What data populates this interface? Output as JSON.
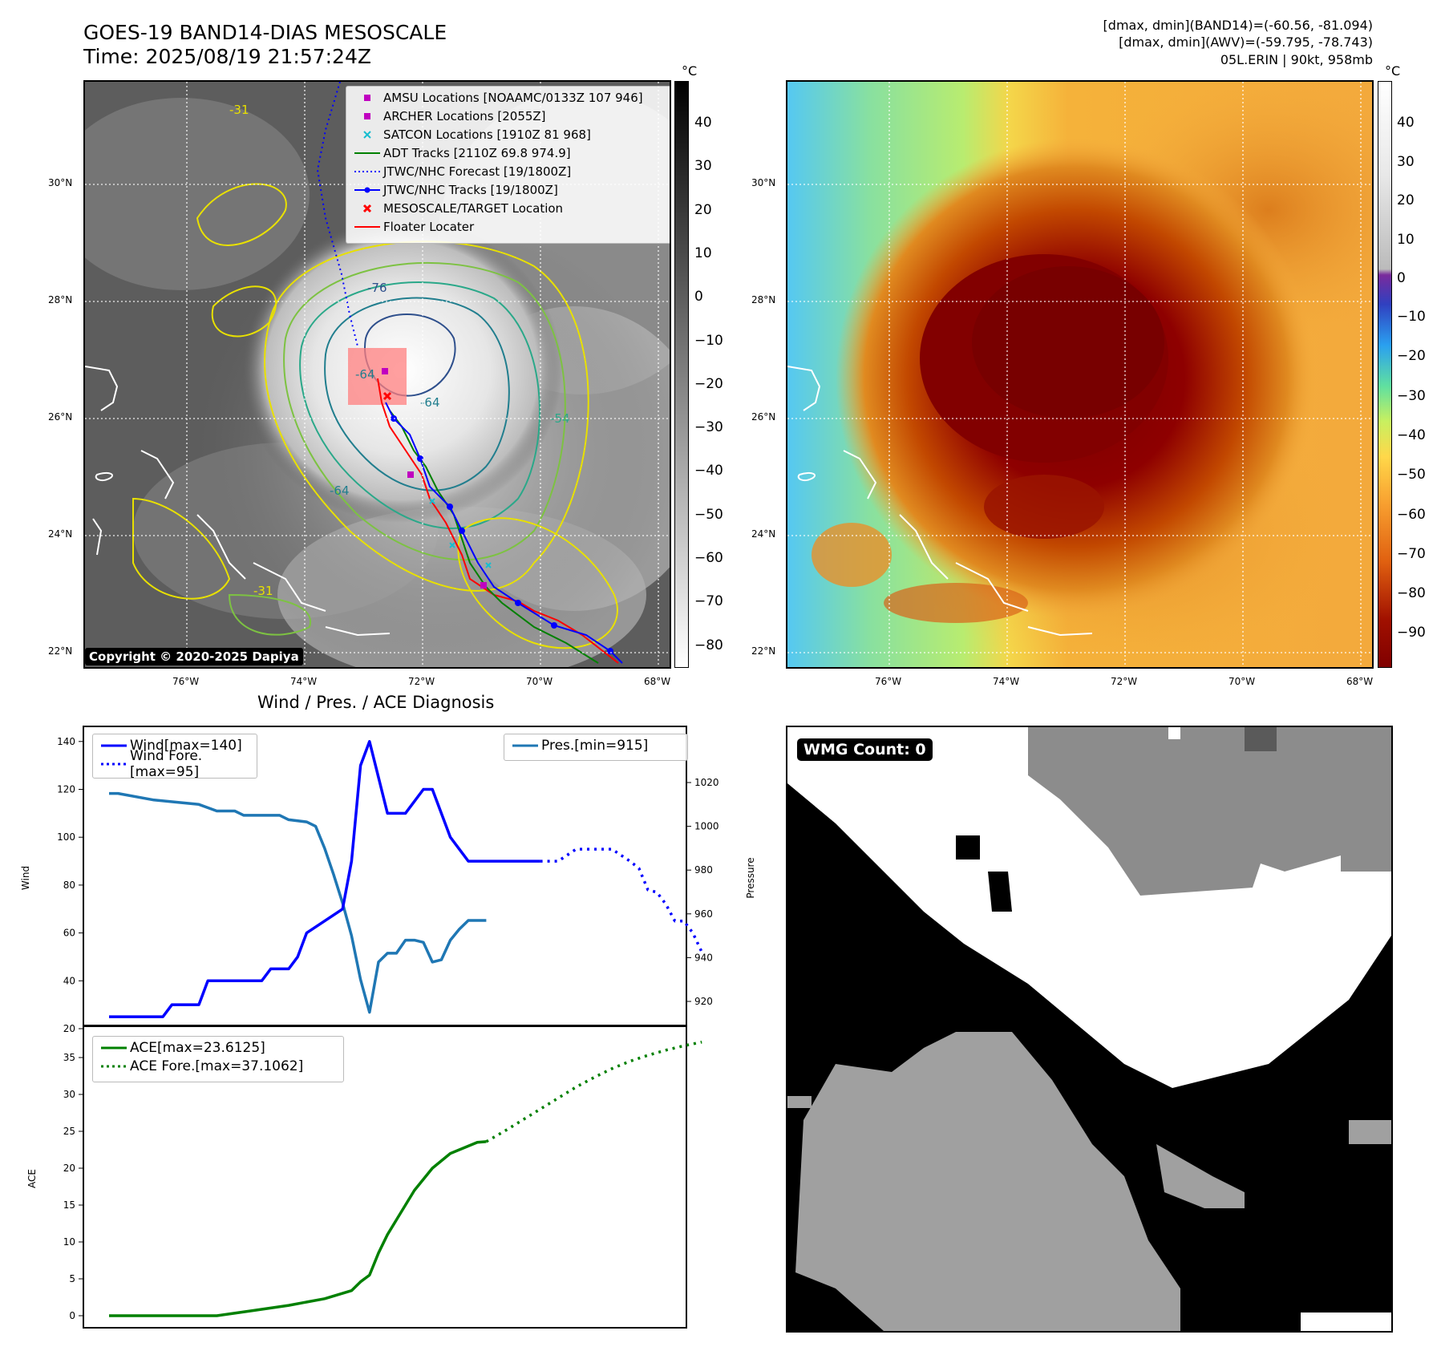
{
  "header": {
    "title_line1": "GOES-19 BAND14-DIAS MESOSCALE",
    "title_line2": "Time: 2025/08/19 21:57:24Z",
    "stat_line1": "[dmax, dmin](BAND14)=(-60.56, -81.094)",
    "stat_line2": "[dmax, dmin](AWV)=(-59.795, -78.743)",
    "stat_line3": "05L.ERIN | 90kt, 958mb"
  },
  "map": {
    "lat_ticks": [
      "30°N",
      "28°N",
      "26°N",
      "24°N",
      "22°N"
    ],
    "lon_ticks": [
      "76°W",
      "74°W",
      "72°W",
      "70°W",
      "68°W"
    ],
    "cbar_unit": "°C",
    "left_cbar_ticks": [
      "40",
      "30",
      "20",
      "10",
      "0",
      "−10",
      "−20",
      "−30",
      "−40",
      "−50",
      "−60",
      "−70",
      "−80"
    ],
    "right_cbar_ticks": [
      "40",
      "30",
      "20",
      "10",
      "0",
      "−10",
      "−20",
      "−30",
      "−40",
      "−50",
      "−60",
      "−70",
      "−80",
      "−90"
    ],
    "copyright": "Copyright © 2020-2025 Dapiya",
    "contour_labels": [
      "-76",
      "-64",
      "-64",
      "-64",
      "-54",
      "-31",
      "-31"
    ],
    "legend": [
      {
        "label": "AMSU Locations [NOAAMC/0133Z 107 946]",
        "symbol": "square",
        "color": "#c000c0"
      },
      {
        "label": "ARCHER Locations [2055Z]",
        "symbol": "square",
        "color": "#c000c0"
      },
      {
        "label": "SATCON Locations [1910Z 81 968]",
        "symbol": "x",
        "color": "#17becf"
      },
      {
        "label": "ADT Tracks [2110Z 69.8 974.9]",
        "symbol": "line",
        "color": "#008000"
      },
      {
        "label": "JTWC/NHC Forecast [19/1800Z]",
        "symbol": "dotted",
        "color": "#0000ff"
      },
      {
        "label": "JTWC/NHC Tracks [19/1800Z]",
        "symbol": "line-dot",
        "color": "#0000ff"
      },
      {
        "label": "MESOSCALE/TARGET Location",
        "symbol": "x",
        "color": "#ff0000"
      },
      {
        "label": "Floater Locater",
        "symbol": "line",
        "color": "#ff0000"
      }
    ]
  },
  "diagnosis": {
    "title": "Wind / Pres. / ACE Diagnosis",
    "wind_label": "Wind",
    "pressure_label": "Pressure",
    "ace_label": "ACE",
    "legend_wind": "Wind[max=140]",
    "legend_wind_fore": "Wind Fore.[max=95]",
    "legend_pres": "Pres.[min=915]",
    "legend_ace": "ACE[max=23.6125]",
    "legend_ace_fore": "ACE Fore.[max=37.1062]",
    "wind_ticks": [
      "20",
      "40",
      "60",
      "80",
      "100",
      "120",
      "140"
    ],
    "pres_ticks": [
      "920",
      "940",
      "960",
      "980",
      "1000",
      "1020"
    ],
    "ace_ticks": [
      "0",
      "5",
      "10",
      "15",
      "20",
      "25",
      "30",
      "35"
    ]
  },
  "wmg": {
    "count_label": "WMG Count: 0"
  },
  "colors": {
    "wind": "#0000ff",
    "pressure": "#1f77b4",
    "ace": "#008000",
    "track_red": "#ff0000",
    "adt_green": "#008000"
  },
  "chart_data": [
    {
      "type": "line",
      "name_hint": "wind-pressure",
      "x": [
        0,
        1,
        2,
        3,
        4,
        5,
        6,
        7,
        8,
        9,
        10,
        11,
        12,
        13,
        14,
        15,
        16,
        17,
        18,
        19,
        20,
        21,
        22,
        23,
        24,
        25,
        26,
        27,
        28,
        29,
        30,
        31,
        32,
        33,
        34,
        35,
        36,
        37,
        38,
        39,
        40,
        41,
        42,
        43,
        44,
        45,
        46,
        47,
        48,
        49,
        50,
        51,
        52,
        53,
        54,
        55,
        56,
        57,
        58,
        59,
        60,
        61,
        62,
        63,
        64,
        65,
        66,
        67,
        68,
        69,
        70
      ],
      "series": [
        {
          "name": "Wind[max=140]",
          "axis": "left",
          "style": "solid",
          "x": [
            0,
            6,
            7,
            10,
            11,
            17,
            18,
            19,
            20,
            21,
            22,
            24,
            26,
            27,
            28,
            29,
            30,
            31,
            32,
            33,
            34,
            35,
            36,
            37,
            38,
            40,
            41,
            42,
            44,
            45,
            46,
            48
          ],
          "values": [
            25,
            25,
            30,
            30,
            40,
            40,
            45,
            45,
            45,
            50,
            60,
            65,
            70,
            90,
            130,
            140,
            125,
            110,
            110,
            110,
            115,
            120,
            120,
            110,
            100,
            90,
            90,
            90,
            90,
            90,
            90,
            90
          ]
        },
        {
          "name": "Wind Fore.[max=95]",
          "axis": "left",
          "style": "dotted",
          "x": [
            48,
            50,
            52,
            54,
            56,
            58,
            59,
            60,
            61,
            62,
            63,
            64,
            65,
            66
          ],
          "values": [
            90,
            90,
            95,
            95,
            95,
            90,
            87,
            78,
            77,
            72,
            65,
            65,
            60,
            52
          ]
        },
        {
          "name": "Pres.[min=915]",
          "axis": "right",
          "style": "solid",
          "x": [
            0,
            1,
            5,
            10,
            12,
            14,
            15,
            19,
            20,
            22,
            23,
            24,
            25,
            26,
            27,
            28,
            29,
            30,
            31,
            32,
            33,
            34,
            35,
            36,
            37,
            38,
            39,
            40,
            41,
            42
          ],
          "values": [
            1015,
            1015,
            1012,
            1010,
            1007,
            1007,
            1005,
            1005,
            1003,
            1002,
            1000,
            990,
            978,
            965,
            950,
            930,
            915,
            938,
            942,
            942,
            948,
            948,
            947,
            938,
            939,
            948,
            953,
            957,
            957,
            957
          ]
        }
      ],
      "ylim_left": [
        20,
        145
      ],
      "ylim_right": [
        910,
        1020
      ],
      "ylabel": "Wind",
      "ylabel_right": "Pressure",
      "grid": false,
      "legend_placement": "top-left, top-right"
    },
    {
      "type": "line",
      "name_hint": "ace",
      "series": [
        {
          "name": "ACE[max=23.6125]",
          "style": "solid",
          "x": [
            0,
            12,
            16,
            20,
            24,
            27,
            28,
            29,
            30,
            31,
            32,
            33,
            34,
            36,
            38,
            40,
            41,
            42
          ],
          "values": [
            0,
            0,
            0.7,
            1.4,
            2.3,
            3.4,
            4.6,
            5.5,
            8.5,
            11,
            13,
            15,
            17,
            20,
            22,
            23,
            23.5,
            23.6
          ]
        },
        {
          "name": "ACE Fore.[max=37.1062]",
          "style": "dotted",
          "x": [
            42,
            44,
            46,
            48,
            50,
            52,
            54,
            56,
            58,
            60,
            62,
            64,
            66
          ],
          "values": [
            23.6,
            25,
            26.5,
            28,
            29.5,
            31,
            32.3,
            33.5,
            34.5,
            35.3,
            36,
            36.6,
            37.1
          ]
        }
      ],
      "ylim": [
        -1,
        38
      ],
      "ylabel": "ACE",
      "grid": false,
      "legend_placement": "top-left"
    }
  ]
}
